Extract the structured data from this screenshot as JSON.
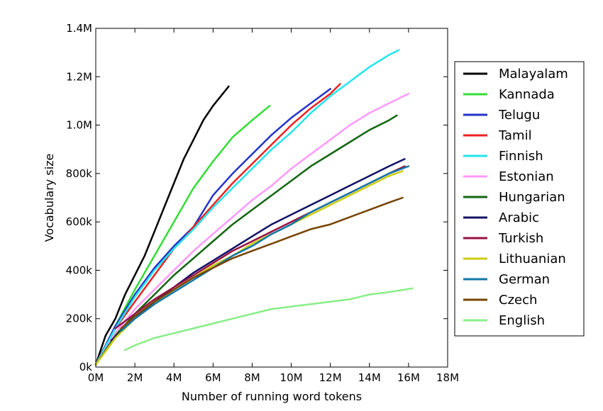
{
  "chart_data": {
    "type": "line",
    "title": "",
    "xlabel": "Number of running word tokens",
    "ylabel": "Vocabulary size",
    "xlim": [
      0,
      18
    ],
    "ylim": [
      0,
      1.4
    ],
    "xtick_labels": [
      "0M",
      "2M",
      "4M",
      "6M",
      "8M",
      "10M",
      "12M",
      "14M",
      "16M",
      "18M"
    ],
    "ytick_labels": [
      "0k",
      "200k",
      "400k",
      "600k",
      "800k",
      "1.0M",
      "1.2M",
      "1.4M"
    ],
    "grid": false,
    "legend_position": "right",
    "series": [
      {
        "name": "Malayalam",
        "color": "#000000",
        "x": [
          0,
          0.5,
          1,
          1.5,
          2,
          2.5,
          3,
          3.5,
          4,
          4.5,
          5,
          5.5,
          6,
          6.8
        ],
        "y": [
          0.01,
          0.13,
          0.2,
          0.3,
          0.38,
          0.46,
          0.56,
          0.66,
          0.76,
          0.86,
          0.94,
          1.02,
          1.08,
          1.16
        ]
      },
      {
        "name": "Kannada",
        "color": "#33dd33",
        "x": [
          0,
          1,
          2,
          3,
          4,
          5,
          6,
          7,
          8,
          8.9
        ],
        "y": [
          0.01,
          0.17,
          0.32,
          0.46,
          0.6,
          0.74,
          0.85,
          0.95,
          1.02,
          1.08
        ]
      },
      {
        "name": "Telugu",
        "color": "#2233cc",
        "x": [
          0,
          1,
          2,
          3,
          4,
          5,
          6,
          7,
          8,
          9,
          10,
          11,
          12
        ],
        "y": [
          0.01,
          0.17,
          0.3,
          0.41,
          0.5,
          0.58,
          0.71,
          0.8,
          0.88,
          0.96,
          1.03,
          1.09,
          1.15
        ]
      },
      {
        "name": "Tamil",
        "color": "#ee2222",
        "x": [
          0,
          1,
          2,
          3,
          4,
          4.5,
          5,
          6,
          7,
          8,
          9,
          10,
          11,
          12,
          12.5
        ],
        "y": [
          0.01,
          0.16,
          0.27,
          0.38,
          0.49,
          0.53,
          0.58,
          0.67,
          0.76,
          0.84,
          0.92,
          1.0,
          1.07,
          1.13,
          1.17
        ]
      },
      {
        "name": "Finnish",
        "color": "#22e5ee",
        "x": [
          0,
          1,
          2,
          3,
          4,
          5,
          6,
          7,
          8,
          9,
          10,
          11,
          12,
          13,
          14,
          15,
          15.5
        ],
        "y": [
          0.01,
          0.16,
          0.29,
          0.4,
          0.49,
          0.57,
          0.66,
          0.74,
          0.82,
          0.9,
          0.97,
          1.05,
          1.12,
          1.18,
          1.24,
          1.29,
          1.31
        ]
      },
      {
        "name": "Estonian",
        "color": "#ff99ff",
        "x": [
          0,
          1,
          2,
          3,
          4,
          5,
          6,
          7,
          8,
          9,
          10,
          11,
          12,
          13,
          14,
          15,
          16
        ],
        "y": [
          0.01,
          0.14,
          0.24,
          0.32,
          0.4,
          0.48,
          0.55,
          0.62,
          0.69,
          0.75,
          0.82,
          0.88,
          0.94,
          1.0,
          1.05,
          1.09,
          1.13
        ]
      },
      {
        "name": "Hungarian",
        "color": "#116611",
        "x": [
          0,
          1,
          2,
          3,
          4,
          5,
          6,
          7,
          8,
          9,
          10,
          11,
          12,
          13,
          14,
          15,
          15.4
        ],
        "y": [
          0.01,
          0.13,
          0.22,
          0.3,
          0.38,
          0.45,
          0.52,
          0.59,
          0.65,
          0.71,
          0.77,
          0.83,
          0.88,
          0.93,
          0.98,
          1.02,
          1.04
        ]
      },
      {
        "name": "Arabic",
        "color": "#111166",
        "x": [
          0.8,
          2,
          3,
          4,
          5,
          6,
          7,
          8,
          9,
          10,
          11,
          12,
          13,
          14,
          15,
          15.8
        ],
        "y": [
          0.11,
          0.2,
          0.27,
          0.33,
          0.39,
          0.44,
          0.49,
          0.54,
          0.59,
          0.63,
          0.67,
          0.71,
          0.75,
          0.79,
          0.83,
          0.86
        ]
      },
      {
        "name": "Turkish",
        "color": "#991144",
        "x": [
          1,
          2,
          3,
          4,
          5,
          6,
          7,
          8,
          9,
          10,
          11,
          12,
          13,
          14,
          15,
          15.8
        ],
        "y": [
          0.16,
          0.22,
          0.28,
          0.33,
          0.38,
          0.43,
          0.48,
          0.52,
          0.56,
          0.6,
          0.64,
          0.68,
          0.72,
          0.76,
          0.8,
          0.83
        ]
      },
      {
        "name": "Lithuanian",
        "color": "#cccc11",
        "x": [
          0,
          1,
          2,
          3,
          4,
          5,
          6,
          7,
          8,
          9,
          10,
          11,
          12,
          13,
          14,
          15,
          15.7
        ],
        "y": [
          0.01,
          0.12,
          0.2,
          0.26,
          0.32,
          0.37,
          0.42,
          0.46,
          0.51,
          0.55,
          0.59,
          0.63,
          0.67,
          0.71,
          0.75,
          0.79,
          0.81
        ]
      },
      {
        "name": "German",
        "color": "#1177aa",
        "x": [
          1.3,
          2,
          3,
          4,
          5,
          6,
          7,
          8,
          9,
          10,
          11,
          12,
          13,
          14,
          15,
          16
        ],
        "y": [
          0.15,
          0.2,
          0.26,
          0.31,
          0.36,
          0.41,
          0.46,
          0.5,
          0.55,
          0.59,
          0.64,
          0.68,
          0.72,
          0.76,
          0.8,
          0.83
        ]
      },
      {
        "name": "Czech",
        "color": "#774400",
        "x": [
          1.3,
          2,
          3,
          4,
          5,
          6,
          7,
          8,
          9,
          10,
          11,
          12,
          13,
          14,
          15,
          15.7
        ],
        "y": [
          0.16,
          0.21,
          0.27,
          0.32,
          0.37,
          0.41,
          0.45,
          0.48,
          0.51,
          0.54,
          0.57,
          0.59,
          0.62,
          0.65,
          0.68,
          0.7
        ]
      },
      {
        "name": "English",
        "color": "#88ee88",
        "x": [
          1.5,
          2,
          3,
          4,
          5,
          6,
          7,
          8,
          9,
          10,
          11,
          12,
          13,
          14,
          15,
          16.2
        ],
        "y": [
          0.07,
          0.09,
          0.12,
          0.14,
          0.16,
          0.18,
          0.2,
          0.22,
          0.24,
          0.25,
          0.26,
          0.27,
          0.28,
          0.3,
          0.31,
          0.325
        ]
      }
    ]
  }
}
